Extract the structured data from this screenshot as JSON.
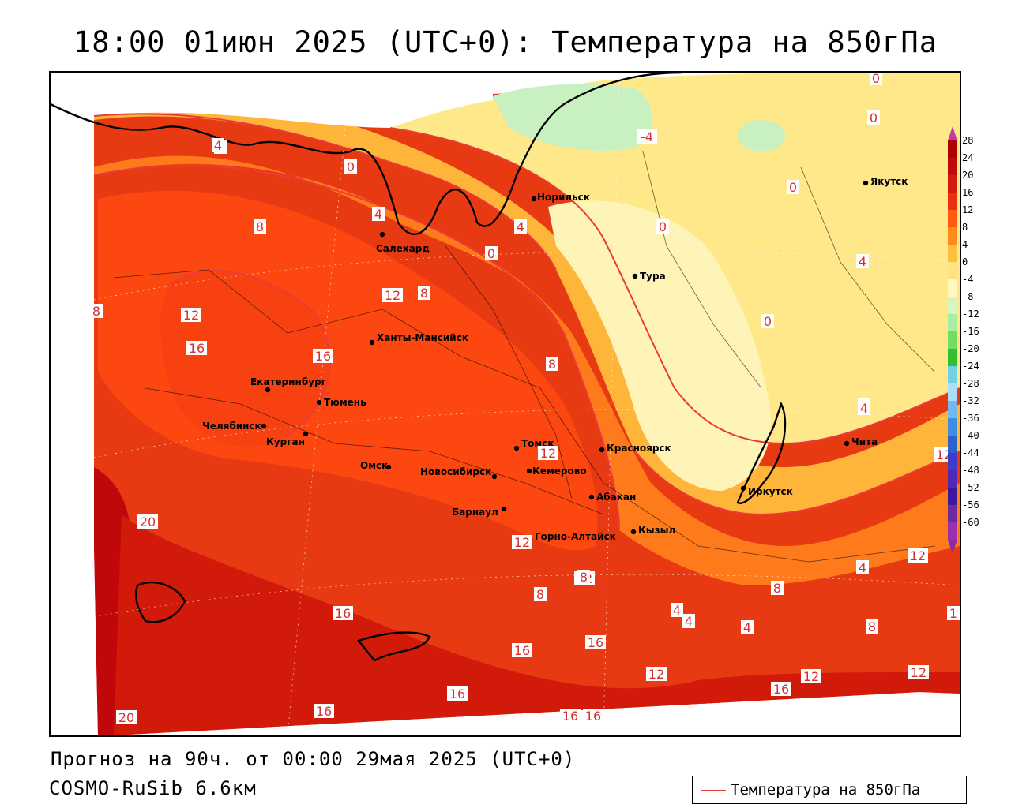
{
  "title": "18:00 01июн 2025 (UTC+0): Температура на 850гПа",
  "footer": {
    "forecast": "Прогноз на 90ч. от 00:00 29мая 2025 (UTC+0)",
    "model": "COSMO-RuSib 6.6км"
  },
  "legend": {
    "label": "Температура на 850гПа",
    "line_color": "#e83b3b"
  },
  "color_scale": {
    "ticks": [
      "28",
      "24",
      "20",
      "16",
      "12",
      "8",
      "4",
      "0",
      "-4",
      "-8",
      "-12",
      "-16",
      "-20",
      "-24",
      "-28",
      "-32",
      "-36",
      "-40",
      "-44",
      "-48",
      "-52",
      "-56",
      "-60"
    ],
    "colors": [
      "#b00000",
      "#c20a0a",
      "#d41a0a",
      "#ea3010",
      "#ff5a10",
      "#ff8c1a",
      "#ffbe3c",
      "#ffe380",
      "#fff7c0",
      "#d8f7c0",
      "#a8eea0",
      "#70de60",
      "#30c030",
      "#70d0e8",
      "#a8e0f8",
      "#70b8f0",
      "#3c8ee0",
      "#2b60d0",
      "#3c3cc8",
      "#5028b8",
      "#3a18a0",
      "#6a2aa0",
      "#9a30b0"
    ]
  },
  "cities": [
    {
      "name": "Норильск"
    },
    {
      "name": "Якутск"
    },
    {
      "name": "Салехард"
    },
    {
      "name": "Тура"
    },
    {
      "name": "Ханты-Мансийск"
    },
    {
      "name": "Екатеринбург"
    },
    {
      "name": "Тюмень"
    },
    {
      "name": "Челябинск"
    },
    {
      "name": "Курган"
    },
    {
      "name": "Томск"
    },
    {
      "name": "Красноярск"
    },
    {
      "name": "Омск"
    },
    {
      "name": "Новосибирск"
    },
    {
      "name": "Кемерово"
    },
    {
      "name": "Абакан"
    },
    {
      "name": "Иркутск"
    },
    {
      "name": "Барнаул"
    },
    {
      "name": "Горно-Алтайск"
    },
    {
      "name": "Кызыл"
    },
    {
      "name": "Чита"
    }
  ],
  "contour_labels": [
    "0",
    "0",
    "4",
    "0",
    "-4",
    "4",
    "0",
    "0",
    "8",
    "4",
    "0",
    "0",
    "4",
    "8",
    "12",
    "8",
    "12",
    "16",
    "16",
    "0",
    "4",
    "8",
    "4",
    "12",
    "12",
    "20",
    "16",
    "16",
    "16",
    "16",
    "16",
    "12",
    "12",
    "12",
    "12",
    "4",
    "8",
    "4",
    "4",
    "8",
    "4",
    "12",
    "1",
    "20",
    "16",
    "16",
    "16",
    "8",
    "12",
    "8"
  ]
}
